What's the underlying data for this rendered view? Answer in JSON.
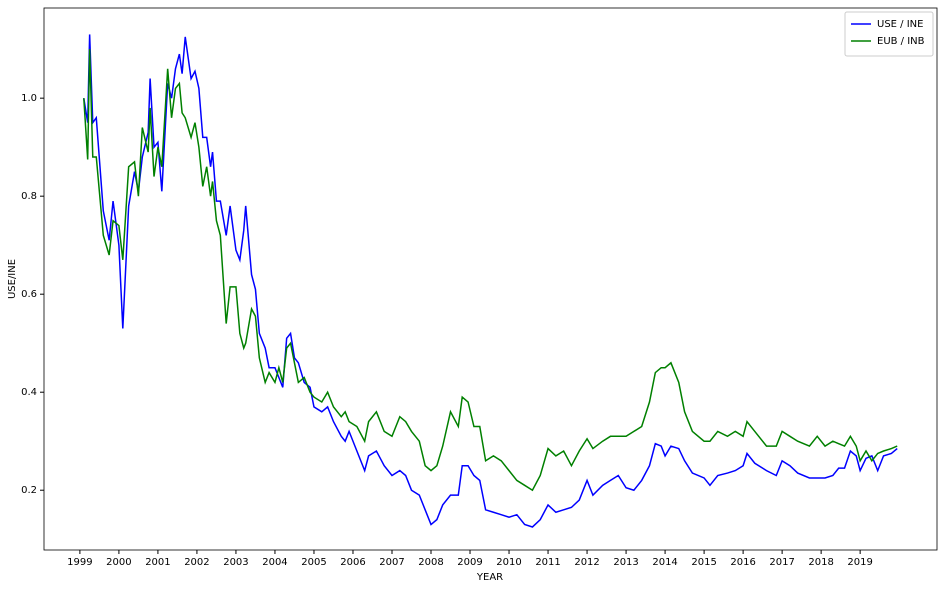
{
  "chart_data": {
    "type": "line",
    "x_label": "YEAR",
    "y_label": "USE/INE",
    "x": [
      1999.1,
      1999.2,
      1999.25,
      1999.33,
      1999.42,
      1999.6,
      1999.75,
      1999.85,
      2000.0,
      2000.1,
      2000.25,
      2000.4,
      2000.5,
      2000.6,
      2000.75,
      2000.8,
      2000.9,
      2001.0,
      2001.1,
      2001.25,
      2001.35,
      2001.45,
      2001.55,
      2001.62,
      2001.7,
      2001.85,
      2001.95,
      2002.05,
      2002.15,
      2002.25,
      2002.35,
      2002.4,
      2002.5,
      2002.6,
      2002.75,
      2002.85,
      2003.0,
      2003.1,
      2003.2,
      2003.25,
      2003.4,
      2003.5,
      2003.6,
      2003.75,
      2003.85,
      2004.0,
      2004.1,
      2004.2,
      2004.3,
      2004.4,
      2004.5,
      2004.6,
      2004.75,
      2004.9,
      2005.0,
      2005.2,
      2005.35,
      2005.5,
      2005.7,
      2005.8,
      2005.9,
      2006.1,
      2006.3,
      2006.4,
      2006.6,
      2006.8,
      2007.0,
      2007.2,
      2007.35,
      2007.5,
      2007.7,
      2007.85,
      2008.0,
      2008.15,
      2008.3,
      2008.5,
      2008.7,
      2008.8,
      2008.95,
      2009.1,
      2009.25,
      2009.4,
      2009.6,
      2009.8,
      2010.0,
      2010.2,
      2010.4,
      2010.6,
      2010.8,
      2011.0,
      2011.2,
      2011.4,
      2011.6,
      2011.8,
      2012.0,
      2012.15,
      2012.4,
      2012.6,
      2012.8,
      2013.0,
      2013.2,
      2013.4,
      2013.6,
      2013.75,
      2013.9,
      2014.0,
      2014.15,
      2014.35,
      2014.5,
      2014.7,
      2015.0,
      2015.15,
      2015.35,
      2015.6,
      2015.8,
      2016.0,
      2016.1,
      2016.3,
      2016.6,
      2016.85,
      2017.0,
      2017.2,
      2017.4,
      2017.7,
      2017.9,
      2018.1,
      2018.3,
      2018.45,
      2018.6,
      2018.75,
      2018.9,
      2019.0,
      2019.15,
      2019.3,
      2019.45,
      2019.6,
      2019.8,
      2019.95
    ],
    "series": [
      {
        "name": "USE / INE",
        "color": "#0000ff",
        "values": [
          1.0,
          0.95,
          1.13,
          0.95,
          0.96,
          0.77,
          0.71,
          0.79,
          0.7,
          0.53,
          0.78,
          0.85,
          0.81,
          0.88,
          0.93,
          1.04,
          0.9,
          0.91,
          0.81,
          1.03,
          1.0,
          1.06,
          1.09,
          1.05,
          1.125,
          1.04,
          1.055,
          1.02,
          0.92,
          0.92,
          0.86,
          0.89,
          0.79,
          0.79,
          0.72,
          0.78,
          0.69,
          0.67,
          0.73,
          0.78,
          0.64,
          0.61,
          0.52,
          0.49,
          0.45,
          0.45,
          0.43,
          0.41,
          0.51,
          0.52,
          0.47,
          0.46,
          0.42,
          0.41,
          0.37,
          0.36,
          0.37,
          0.34,
          0.31,
          0.3,
          0.32,
          0.28,
          0.24,
          0.27,
          0.28,
          0.25,
          0.23,
          0.24,
          0.23,
          0.2,
          0.19,
          0.16,
          0.13,
          0.14,
          0.17,
          0.19,
          0.19,
          0.25,
          0.25,
          0.23,
          0.22,
          0.16,
          0.155,
          0.15,
          0.145,
          0.15,
          0.13,
          0.125,
          0.14,
          0.17,
          0.155,
          0.16,
          0.165,
          0.18,
          0.22,
          0.19,
          0.21,
          0.22,
          0.23,
          0.205,
          0.2,
          0.22,
          0.25,
          0.295,
          0.29,
          0.27,
          0.29,
          0.285,
          0.26,
          0.235,
          0.225,
          0.21,
          0.23,
          0.235,
          0.24,
          0.25,
          0.275,
          0.255,
          0.24,
          0.23,
          0.26,
          0.25,
          0.235,
          0.225,
          0.225,
          0.225,
          0.23,
          0.245,
          0.245,
          0.28,
          0.27,
          0.24,
          0.265,
          0.27,
          0.24,
          0.27,
          0.275,
          0.285
        ]
      },
      {
        "name": "EUB / INB",
        "color": "#008000",
        "values": [
          1.0,
          0.875,
          1.1,
          0.88,
          0.88,
          0.72,
          0.68,
          0.75,
          0.74,
          0.67,
          0.86,
          0.87,
          0.8,
          0.94,
          0.89,
          0.98,
          0.84,
          0.9,
          0.86,
          1.06,
          0.96,
          1.02,
          1.03,
          0.97,
          0.96,
          0.92,
          0.95,
          0.9,
          0.82,
          0.86,
          0.8,
          0.83,
          0.75,
          0.72,
          0.54,
          0.615,
          0.615,
          0.52,
          0.49,
          0.5,
          0.57,
          0.555,
          0.47,
          0.42,
          0.44,
          0.42,
          0.45,
          0.42,
          0.49,
          0.5,
          0.46,
          0.42,
          0.43,
          0.4,
          0.39,
          0.38,
          0.4,
          0.37,
          0.35,
          0.36,
          0.34,
          0.33,
          0.3,
          0.34,
          0.36,
          0.32,
          0.31,
          0.35,
          0.34,
          0.32,
          0.3,
          0.25,
          0.24,
          0.25,
          0.29,
          0.36,
          0.33,
          0.39,
          0.38,
          0.33,
          0.33,
          0.26,
          0.27,
          0.26,
          0.24,
          0.22,
          0.21,
          0.2,
          0.23,
          0.285,
          0.27,
          0.28,
          0.25,
          0.28,
          0.305,
          0.285,
          0.3,
          0.31,
          0.31,
          0.31,
          0.32,
          0.33,
          0.38,
          0.44,
          0.45,
          0.45,
          0.46,
          0.42,
          0.36,
          0.32,
          0.3,
          0.3,
          0.32,
          0.31,
          0.32,
          0.31,
          0.34,
          0.32,
          0.29,
          0.29,
          0.32,
          0.31,
          0.3,
          0.29,
          0.31,
          0.29,
          0.3,
          0.295,
          0.29,
          0.31,
          0.29,
          0.26,
          0.28,
          0.26,
          0.275,
          0.28,
          0.285,
          0.29
        ]
      }
    ],
    "xlim": [
      1998.08,
      2020.97
    ],
    "xticks": [
      1999,
      2000,
      2001,
      2002,
      2003,
      2004,
      2005,
      2006,
      2007,
      2008,
      2009,
      2010,
      2011,
      2012,
      2013,
      2014,
      2015,
      2016,
      2017,
      2018,
      2019
    ],
    "ylim": [
      0.078,
      1.184
    ],
    "yticks": [
      0.2,
      0.4,
      0.6,
      0.8,
      {
        "value": 1,
        "label": "1.0"
      }
    ],
    "grid": false,
    "legend": "upper right"
  }
}
